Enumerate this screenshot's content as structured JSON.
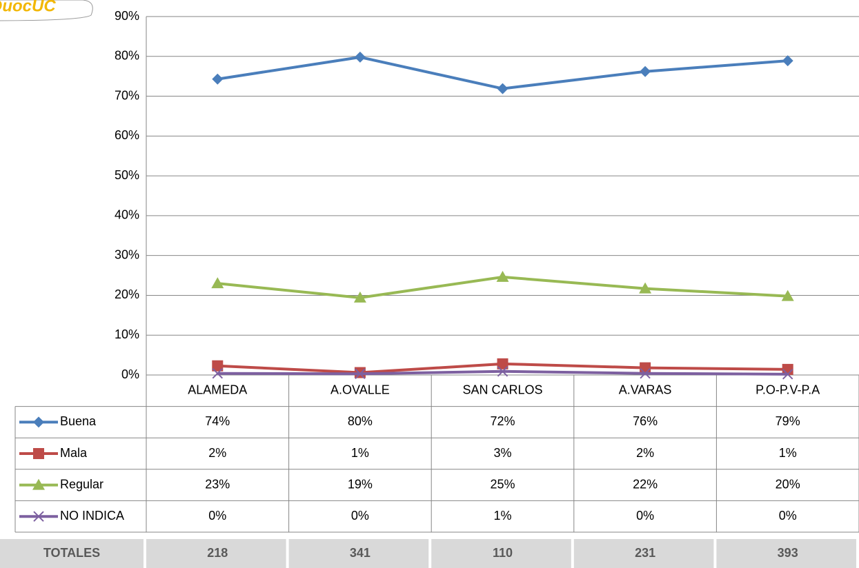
{
  "logo": "DuocUC",
  "chart_data": {
    "type": "line",
    "categories": [
      "ALAMEDA",
      "A.OVALLE",
      "SAN CARLOS",
      "A.VARAS",
      "P.O-P.V-P.A"
    ],
    "series": [
      {
        "name": "Buena",
        "color": "#4a7ebb",
        "values": [
          74.3,
          79.8,
          71.9,
          76.2,
          78.9
        ],
        "value_labels": [
          "74%",
          "80%",
          "72%",
          "76%",
          "79%"
        ]
      },
      {
        "name": "Mala",
        "color": "#be4b48",
        "values": [
          2.3,
          0.6,
          2.8,
          1.8,
          1.4
        ],
        "value_labels": [
          "2%",
          "1%",
          "3%",
          "2%",
          "1%"
        ]
      },
      {
        "name": "Regular",
        "color": "#98b954",
        "values": [
          23.0,
          19.4,
          24.6,
          21.7,
          19.8
        ],
        "value_labels": [
          "23%",
          "19%",
          "25%",
          "22%",
          "20%"
        ]
      },
      {
        "name": "NO INDICA",
        "color": "#7d60a0",
        "values": [
          0.4,
          0.3,
          0.9,
          0.4,
          0.2
        ],
        "value_labels": [
          "0%",
          "0%",
          "1%",
          "0%",
          "0%"
        ]
      }
    ],
    "ylim": [
      0,
      90
    ],
    "yticks": [
      {
        "value": 0,
        "label": "0%"
      },
      {
        "value": 10,
        "label": "10%"
      },
      {
        "value": 20,
        "label": "20%"
      },
      {
        "value": 30,
        "label": "30%"
      },
      {
        "value": 40,
        "label": "40%"
      },
      {
        "value": 50,
        "label": "50%"
      },
      {
        "value": 60,
        "label": "60%"
      },
      {
        "value": 70,
        "label": "70%"
      },
      {
        "value": 80,
        "label": "80%"
      },
      {
        "value": 90,
        "label": "90%"
      }
    ],
    "grid": true
  },
  "totals": {
    "label": "TOTALES",
    "values": [
      218,
      341,
      110,
      231,
      393
    ]
  }
}
